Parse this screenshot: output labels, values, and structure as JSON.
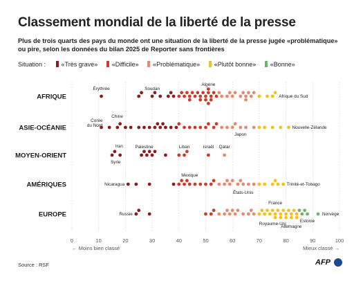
{
  "title": "Classement mondial de la liberté de la presse",
  "subtitle": "Plus de trois quarts des pays du monde ont une situation de la liberté de la presse jugée «problématique» ou pire, selon les données du bilan 2025 de Reporter sans frontières",
  "legend": {
    "label": "Situation :",
    "items": [
      {
        "name": "«Très grave»",
        "color": "#8a1c1c"
      },
      {
        "name": "«Difficile»",
        "color": "#cc3b2c"
      },
      {
        "name": "«Problématique»",
        "color": "#e58b6f"
      },
      {
        "name": "«Plutôt bonne»",
        "color": "#f2c21b"
      },
      {
        "name": "«Bonne»",
        "color": "#6db56d"
      }
    ]
  },
  "source": "Source : RSF",
  "logo": "AFP",
  "chart_data": {
    "type": "scatter",
    "xlim": [
      0,
      100
    ],
    "x_ticks": [
      0,
      10,
      20,
      30,
      40,
      50,
      60,
      70,
      80,
      90,
      100
    ],
    "direction_left": "← Moins bien classé",
    "direction_right": "Mieux classé →",
    "categories": [
      "AFRIQUE",
      "ASIE-OCÉANIE",
      "MOYEN-ORIENT",
      "AMÉRIQUES",
      "EUROPE"
    ],
    "thresholds": [
      40,
      55,
      70,
      85
    ],
    "regions": [
      {
        "name": "AFRIQUE",
        "scores": [
          11,
          25,
          26,
          30,
          31,
          33,
          36,
          37,
          38,
          40,
          41,
          42,
          43,
          44,
          44,
          45,
          46,
          47,
          48,
          48,
          49,
          50,
          50,
          51,
          51,
          51,
          52,
          52,
          53,
          54,
          55,
          56,
          58,
          59,
          60,
          61,
          63,
          64,
          65,
          65,
          66,
          67,
          68,
          70,
          73,
          75,
          76
        ],
        "labels": [
          {
            "text": "Érythrée",
            "x": 11
          },
          {
            "text": "Soudan",
            "x": 30
          },
          {
            "text": "Algérie",
            "x": 51
          },
          {
            "text": "Afrique du Sud",
            "x": 76
          }
        ]
      },
      {
        "name": "ASIE-OCÉANIE",
        "scores": [
          11,
          14,
          17,
          18,
          20,
          22,
          25,
          27,
          29,
          31,
          32,
          33,
          34,
          35,
          37,
          39,
          40,
          42,
          44,
          46,
          48,
          50,
          51,
          53,
          54,
          56,
          58,
          60,
          61,
          63,
          65,
          68,
          70,
          72,
          75,
          78,
          81
        ],
        "labels": [
          {
            "text": "Chine",
            "x": 14
          },
          {
            "text": "Corée du Nord",
            "x": 11
          },
          {
            "text": "Japon",
            "x": 63
          },
          {
            "text": "Nouvelle-Zélande",
            "x": 81
          }
        ]
      },
      {
        "name": "MOYEN-ORIENT",
        "scores": [
          15,
          16,
          18,
          26,
          27,
          28,
          29,
          30,
          31,
          35,
          40,
          42,
          43,
          51,
          57
        ],
        "labels": [
          {
            "text": "Iran",
            "x": 16
          },
          {
            "text": "Syrie",
            "x": 15
          },
          {
            "text": "Palestine",
            "x": 27
          },
          {
            "text": "Liban",
            "x": 42
          },
          {
            "text": "Israël",
            "x": 51
          },
          {
            "text": "Qatar",
            "x": 57
          }
        ]
      },
      {
        "name": "AMÉRIQUES",
        "scores": [
          21,
          24,
          29,
          38,
          40,
          41,
          42,
          43,
          44,
          46,
          48,
          50,
          52,
          53,
          55,
          57,
          58,
          59,
          60,
          62,
          63,
          64,
          66,
          68,
          70,
          72,
          75,
          76,
          77,
          79
        ],
        "labels": [
          {
            "text": "Nicaragua",
            "x": 21
          },
          {
            "text": "Mexique",
            "x": 44
          },
          {
            "text": "États-Unis",
            "x": 64
          },
          {
            "text": "Trinité-et-Tobago",
            "x": 79
          }
        ]
      },
      {
        "name": "EUROPE",
        "scores": [
          24,
          25,
          29,
          50,
          52,
          53,
          55,
          57,
          58,
          59,
          60,
          61,
          62,
          64,
          66,
          67,
          68,
          70,
          71,
          72,
          73,
          74,
          75,
          76,
          76,
          77,
          78,
          78,
          79,
          80,
          80,
          81,
          82,
          82,
          83,
          84,
          84,
          85,
          86,
          87,
          88,
          92
        ],
        "labels": [
          {
            "text": "Russie",
            "x": 24
          },
          {
            "text": "France",
            "x": 76
          },
          {
            "text": "Royaume-Uni",
            "x": 75
          },
          {
            "text": "Allemagne",
            "x": 82
          },
          {
            "text": "Estonie",
            "x": 88
          },
          {
            "text": "Norvège",
            "x": 92
          }
        ]
      }
    ]
  }
}
